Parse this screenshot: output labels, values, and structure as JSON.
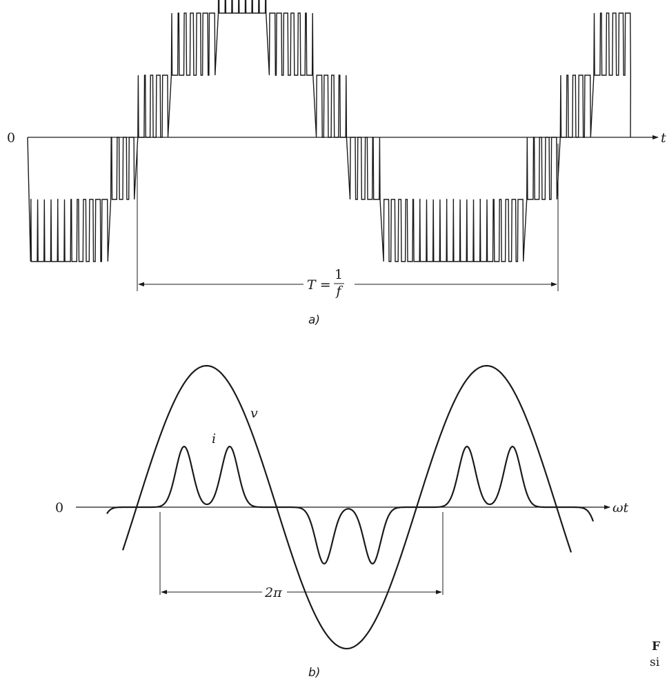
{
  "panel_a": {
    "caption": "a)",
    "axis_origin_label": "0",
    "axis_label": "t",
    "period_label_lhs": "T =",
    "period_fraction_numerator": "1",
    "period_fraction_denominator": "f"
  },
  "panel_b": {
    "caption": "b)",
    "axis_origin_label": "0",
    "axis_label": "ωt",
    "voltage_label": "v",
    "current_label": "i",
    "period_label": "2π"
  },
  "margin_text": {
    "line1": "F",
    "line2": "si"
  }
}
